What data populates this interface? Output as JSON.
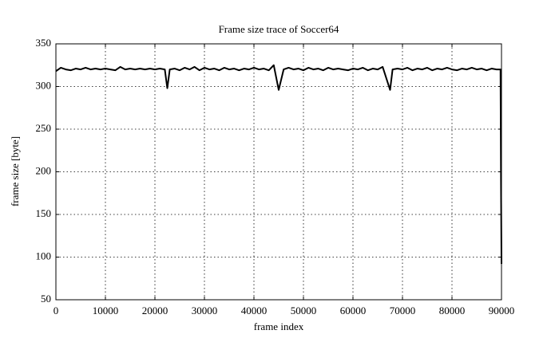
{
  "chart_data": {
    "type": "line",
    "title": "Frame size trace of Soccer64",
    "x_label": "frame index",
    "y_label": "frame size [byte]",
    "color": "#000000",
    "grid": true,
    "xlim": [
      0,
      90000
    ],
    "ylim": [
      50,
      350
    ],
    "xticks": [
      0,
      10000,
      20000,
      30000,
      40000,
      50000,
      60000,
      70000,
      80000,
      90000
    ],
    "yticks": [
      50,
      100,
      150,
      200,
      250,
      300,
      350
    ],
    "x": [
      0,
      1000,
      2000,
      3000,
      4000,
      5000,
      6000,
      7000,
      8000,
      9000,
      10000,
      11000,
      12000,
      13000,
      14000,
      15000,
      16000,
      17000,
      18000,
      19000,
      20000,
      21000,
      22000,
      22500,
      23000,
      24000,
      25000,
      26000,
      27000,
      28000,
      29000,
      30000,
      31000,
      32000,
      33000,
      34000,
      35000,
      36000,
      37000,
      38000,
      39000,
      40000,
      41000,
      42000,
      43000,
      44000,
      45000,
      46000,
      47000,
      48000,
      49000,
      50000,
      51000,
      52000,
      53000,
      54000,
      55000,
      56000,
      57000,
      58000,
      59000,
      60000,
      61000,
      62000,
      63000,
      64000,
      65000,
      66000,
      67500,
      68000,
      69000,
      70000,
      71000,
      72000,
      73000,
      74000,
      75000,
      76000,
      77000,
      78000,
      79000,
      80000,
      81000,
      82000,
      83000,
      84000,
      85000,
      86000,
      87000,
      88000,
      89000,
      89800,
      89900,
      90000
    ],
    "values": [
      318,
      322,
      320,
      319,
      321,
      320,
      322,
      320,
      321,
      320,
      321,
      320,
      319,
      323,
      320,
      321,
      320,
      321,
      320,
      321,
      320,
      321,
      320,
      298,
      320,
      321,
      319,
      322,
      320,
      323,
      319,
      322,
      320,
      321,
      319,
      322,
      320,
      321,
      319,
      321,
      320,
      322,
      320,
      321,
      319,
      325,
      296,
      320,
      322,
      320,
      321,
      319,
      322,
      320,
      321,
      319,
      322,
      320,
      321,
      320,
      319,
      321,
      320,
      322,
      319,
      321,
      320,
      323,
      296,
      320,
      321,
      320,
      322,
      319,
      321,
      320,
      322,
      319,
      321,
      320,
      322,
      320,
      319,
      321,
      320,
      322,
      320,
      321,
      319,
      321,
      320,
      320,
      190,
      92
    ]
  }
}
